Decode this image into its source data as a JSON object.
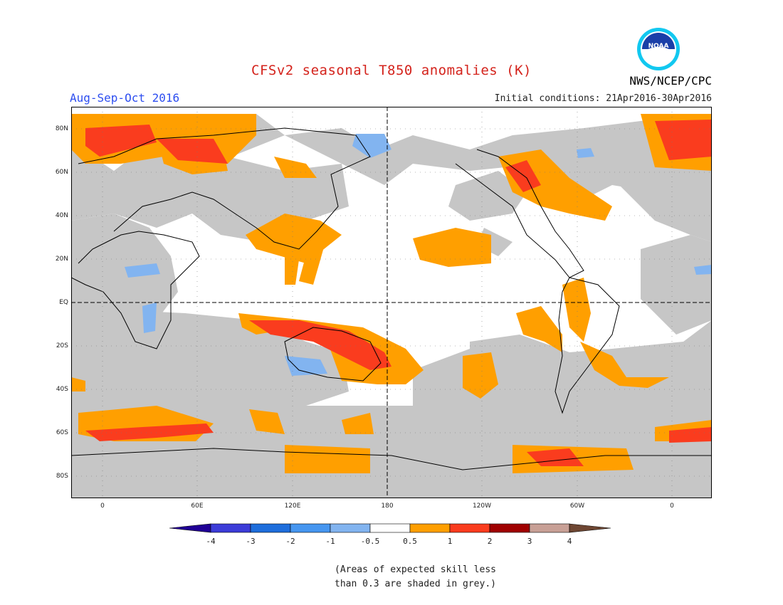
{
  "title": "CFSv2 seasonal T850 anomalies (K)",
  "agency": "NWS/NCEP/CPC",
  "logo_text": "NOAA",
  "season": "Aug-Sep-Oct 2016",
  "initial_conditions": "Initial conditions: 21Apr2016-30Apr2016",
  "lat_labels": [
    "80N",
    "60N",
    "40N",
    "20N",
    "EQ",
    "20S",
    "40S",
    "60S",
    "80S"
  ],
  "lon_labels": [
    "0",
    "60E",
    "120E",
    "180",
    "120W",
    "60W",
    "0"
  ],
  "colorbar": {
    "labels": [
      "-4",
      "-3",
      "-2",
      "-1",
      "-0.5",
      "0.5",
      "1",
      "2",
      "3",
      "4"
    ],
    "colors": [
      "#200096",
      "#3c3cd8",
      "#1e6edc",
      "#4696f0",
      "#82b4f0",
      "#ffffff",
      "#ff9f00",
      "#fa3c1e",
      "#a00000",
      "#c8a096",
      "#6e4632"
    ]
  },
  "note_line1": "(Areas of expected skill less",
  "note_line2": "than 0.3 are shaded in grey.)",
  "colors": {
    "skill_grey": "#c6c6c6",
    "anom_0_5_to_1": "#ff9f00",
    "anom_1_to_2": "#fa3c1e",
    "anom_neg_0_5_to_1": "#82b4f0",
    "anom_neg_1_to_2": "#4696f0"
  }
}
